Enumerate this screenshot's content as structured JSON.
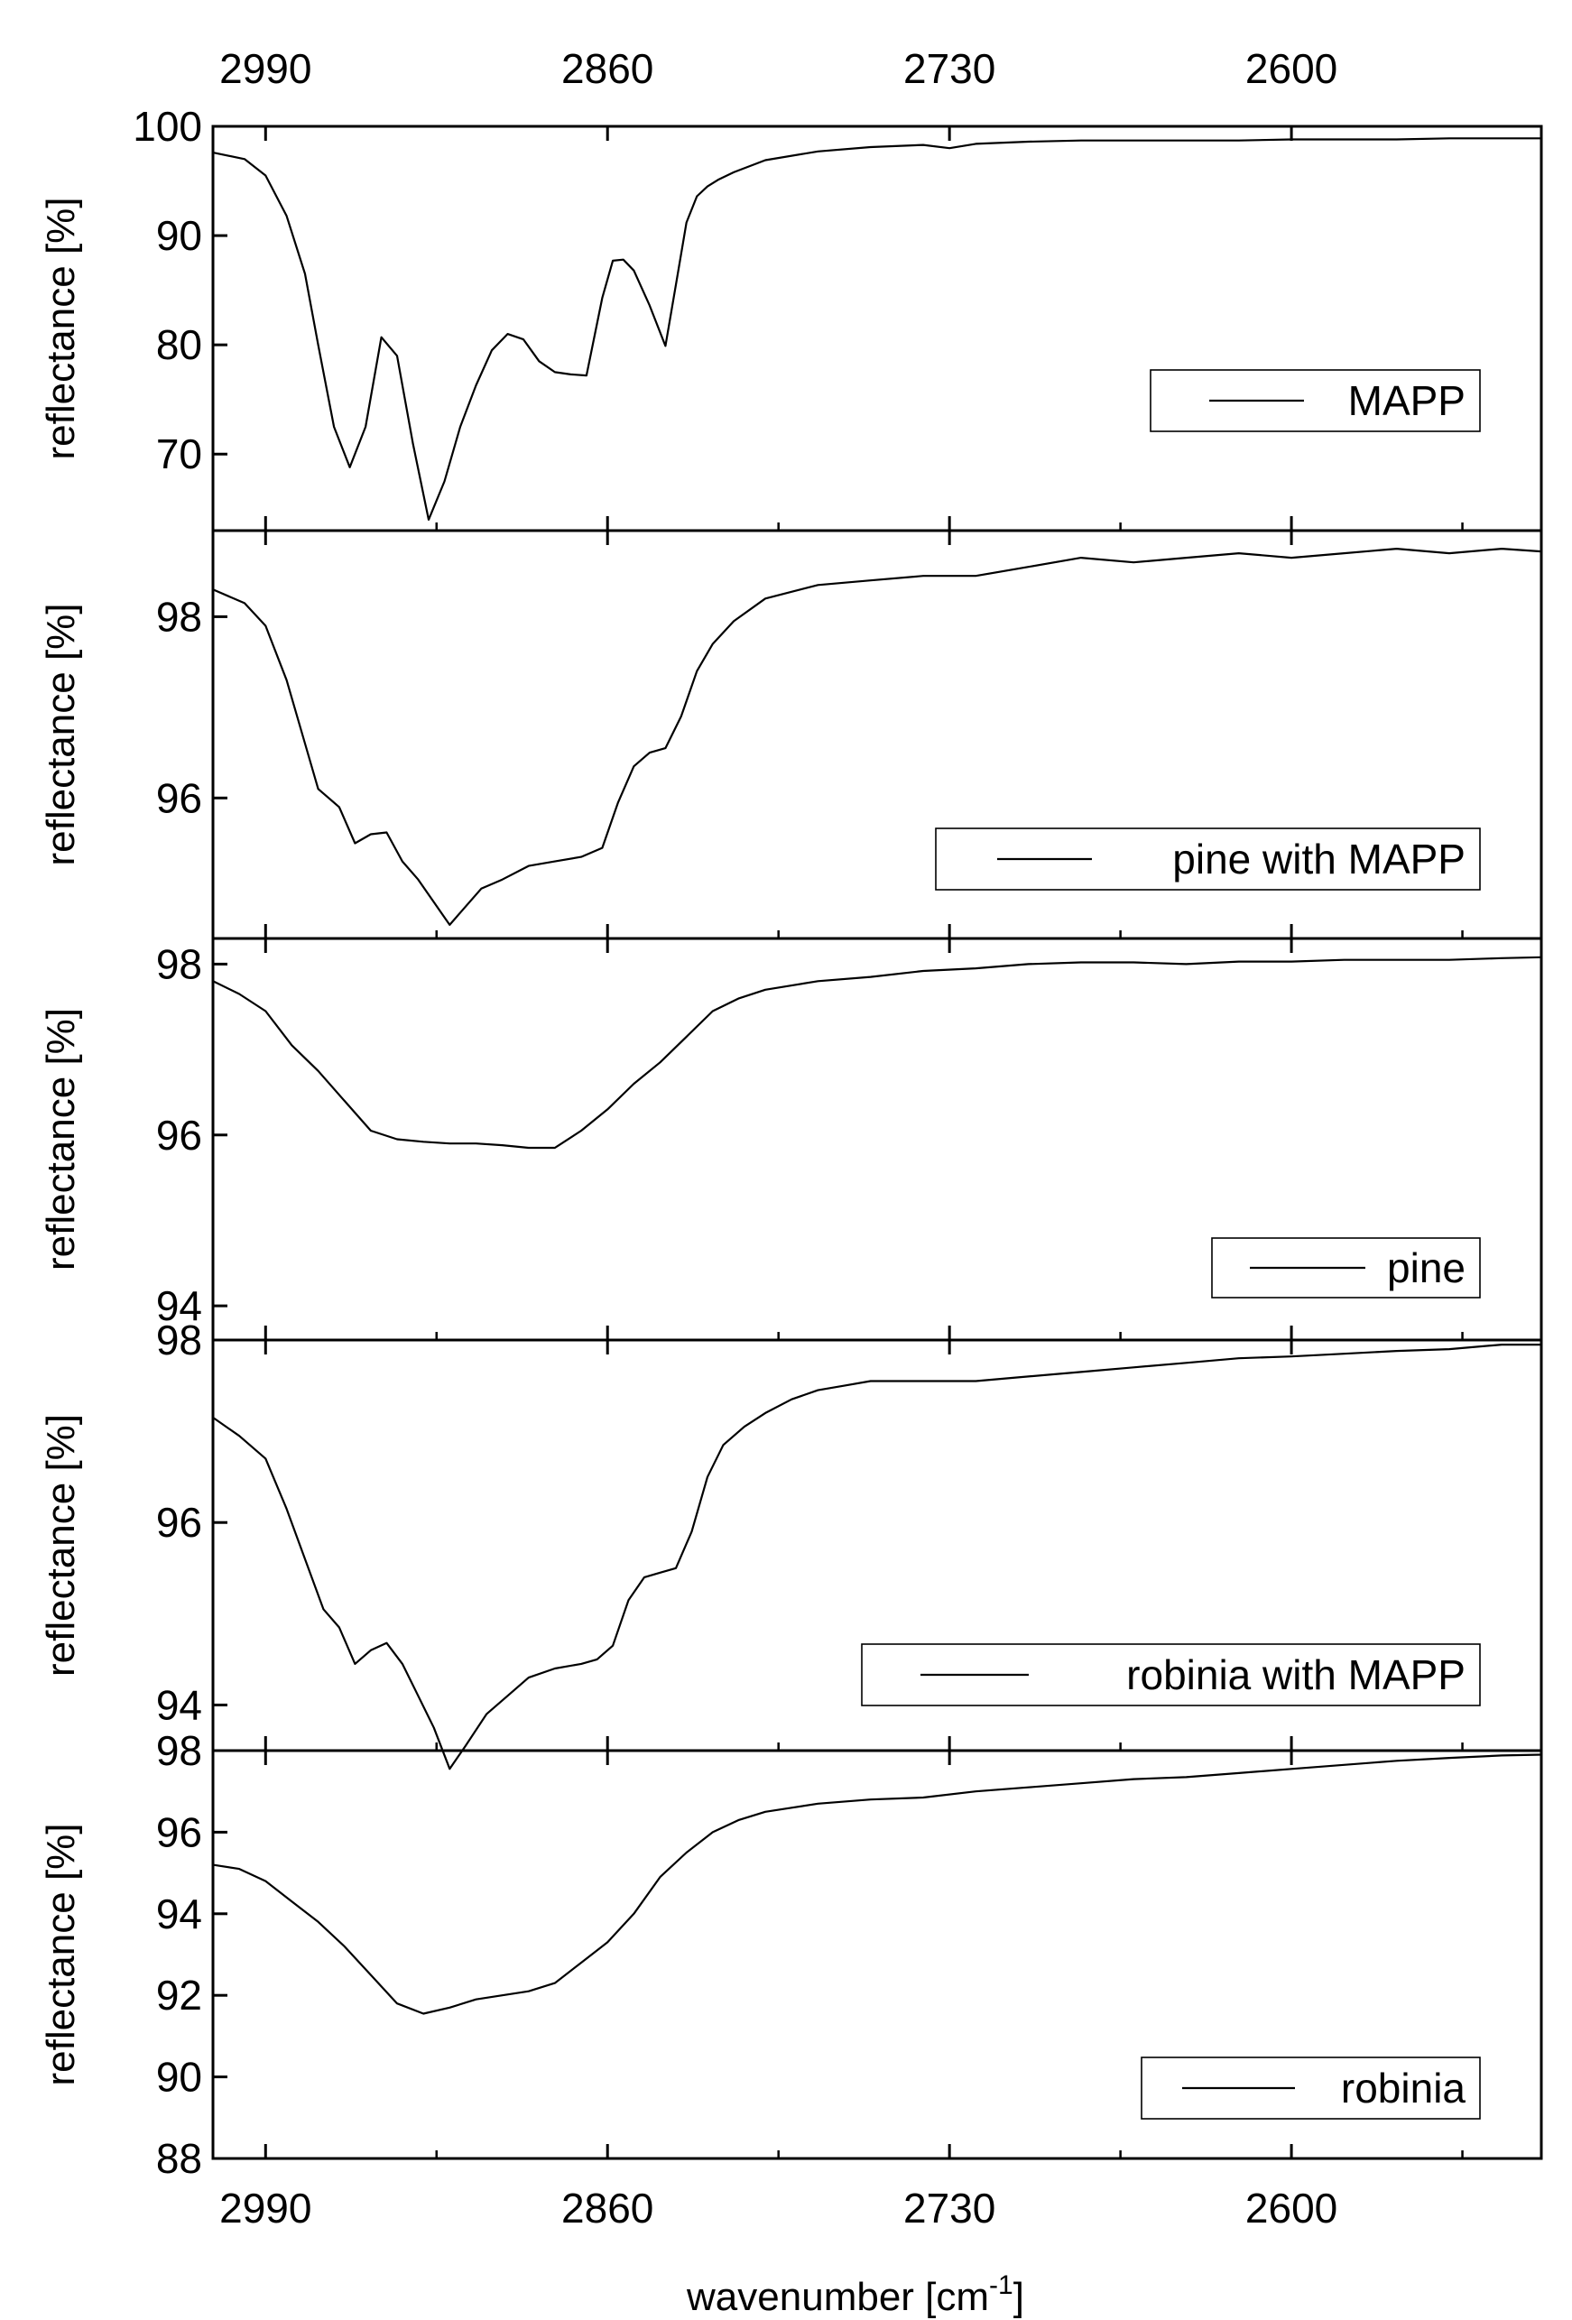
{
  "chart_data": {
    "type": "line",
    "figure": "stacked FTIR reflectance spectra",
    "xlabel_text": "wavenumber [cm",
    "xlabel_sup": "-1",
    "xlabel_close": "]",
    "xlim": [
      3010,
      2505
    ],
    "xticks": [
      2990,
      2860,
      2730,
      2600
    ],
    "xtick_labels": [
      "2990",
      "2860",
      "2730",
      "2600"
    ],
    "panels": [
      {
        "name": "MAPP",
        "legend": "MAPP",
        "ylabel": "reflectance [%]",
        "ylim": [
          63,
          100
        ],
        "yticks": [
          70,
          80,
          90,
          100
        ],
        "ytick_labels": [
          "70",
          "80",
          "90",
          "100"
        ],
        "x": [
          3010,
          2998,
          2990,
          2982,
          2975,
          2970,
          2964,
          2958,
          2952,
          2946,
          2940,
          2934,
          2928,
          2922,
          2916,
          2910,
          2904,
          2898,
          2892,
          2886,
          2880,
          2874,
          2868,
          2862,
          2858,
          2854,
          2850,
          2844,
          2838,
          2834,
          2830,
          2826,
          2822,
          2818,
          2812,
          2800,
          2780,
          2760,
          2740,
          2730,
          2720,
          2700,
          2680,
          2650,
          2620,
          2600,
          2580,
          2560,
          2540,
          2505
        ],
        "y": [
          97.6,
          97,
          95.5,
          91.8,
          86.5,
          80,
          72.5,
          68.8,
          72.5,
          80.7,
          79,
          71,
          64,
          67.5,
          72.5,
          76.3,
          79.5,
          81,
          80.5,
          78.5,
          77.5,
          77.3,
          77.2,
          84.3,
          87.7,
          87.8,
          86.8,
          83.6,
          79.9,
          85.5,
          91.2,
          93.6,
          94.5,
          95.1,
          95.8,
          96.9,
          97.7,
          98.1,
          98.3,
          98,
          98.4,
          98.6,
          98.7,
          98.7,
          98.7,
          98.8,
          98.8,
          98.8,
          98.9,
          98.9
        ]
      },
      {
        "name": "pine with MAPP",
        "legend": "pine with MAPP",
        "ylabel": "reflectance [%]",
        "ylim": [
          94.45,
          98.95
        ],
        "yticks": [
          96,
          98
        ],
        "ytick_labels": [
          "96",
          "98"
        ],
        "x": [
          3010,
          2998,
          2990,
          2982,
          2975,
          2970,
          2962,
          2956,
          2950,
          2944,
          2938,
          2932,
          2926,
          2920,
          2914,
          2908,
          2900,
          2890,
          2880,
          2870,
          2862,
          2856,
          2850,
          2844,
          2838,
          2832,
          2826,
          2820,
          2812,
          2800,
          2780,
          2760,
          2740,
          2720,
          2700,
          2680,
          2660,
          2640,
          2620,
          2600,
          2580,
          2560,
          2540,
          2520,
          2505
        ],
        "y": [
          98.3,
          98.15,
          97.9,
          97.3,
          96.6,
          96.1,
          95.9,
          95.5,
          95.6,
          95.62,
          95.3,
          95.1,
          94.85,
          94.6,
          94.8,
          95,
          95.1,
          95.25,
          95.3,
          95.35,
          95.45,
          95.95,
          96.35,
          96.5,
          96.55,
          96.9,
          97.4,
          97.7,
          97.95,
          98.2,
          98.35,
          98.4,
          98.45,
          98.45,
          98.55,
          98.65,
          98.6,
          98.65,
          98.7,
          98.65,
          98.7,
          98.75,
          98.7,
          98.75,
          98.72
        ]
      },
      {
        "name": "pine",
        "legend": "pine",
        "ylabel": "reflectance [%]",
        "ylim": [
          93.6,
          98.3
        ],
        "yticks": [
          94,
          96,
          98
        ],
        "ytick_labels": [
          "94",
          "96",
          "98"
        ],
        "x": [
          3010,
          3000,
          2990,
          2980,
          2970,
          2960,
          2950,
          2940,
          2930,
          2920,
          2910,
          2900,
          2890,
          2880,
          2870,
          2860,
          2850,
          2840,
          2830,
          2820,
          2810,
          2800,
          2790,
          2780,
          2760,
          2740,
          2720,
          2700,
          2680,
          2660,
          2640,
          2620,
          2600,
          2580,
          2560,
          2540,
          2520,
          2505
        ],
        "y": [
          97.8,
          97.65,
          97.45,
          97.05,
          96.75,
          96.4,
          96.05,
          95.95,
          95.92,
          95.9,
          95.9,
          95.88,
          95.85,
          95.85,
          96.05,
          96.3,
          96.6,
          96.85,
          97.15,
          97.45,
          97.6,
          97.7,
          97.75,
          97.8,
          97.85,
          97.92,
          97.95,
          98.0,
          98.02,
          98.02,
          98.0,
          98.03,
          98.03,
          98.05,
          98.05,
          98.05,
          98.07,
          98.08
        ]
      },
      {
        "name": "robinia with MAPP",
        "legend": "robinia with MAPP",
        "ylabel": "reflectance [%]",
        "ylim": [
          93.5,
          98.0
        ],
        "yticks": [
          94,
          96,
          98
        ],
        "ytick_labels": [
          "94",
          "96",
          "98"
        ],
        "x": [
          3010,
          3000,
          2990,
          2982,
          2975,
          2968,
          2962,
          2956,
          2950,
          2944,
          2938,
          2932,
          2926,
          2920,
          2914,
          2906,
          2898,
          2890,
          2880,
          2870,
          2864,
          2858,
          2852,
          2846,
          2840,
          2834,
          2828,
          2822,
          2816,
          2808,
          2800,
          2790,
          2780,
          2770,
          2760,
          2740,
          2720,
          2700,
          2680,
          2660,
          2640,
          2620,
          2600,
          2580,
          2560,
          2540,
          2520,
          2505
        ],
        "y": [
          97.15,
          96.95,
          96.7,
          96.15,
          95.6,
          95.05,
          94.85,
          94.45,
          94.6,
          94.68,
          94.45,
          94.1,
          93.75,
          93.3,
          93.55,
          93.9,
          94.1,
          94.3,
          94.4,
          94.45,
          94.5,
          94.65,
          95.15,
          95.4,
          95.45,
          95.5,
          95.9,
          96.5,
          96.85,
          97.05,
          97.2,
          97.35,
          97.45,
          97.5,
          97.55,
          97.55,
          97.55,
          97.6,
          97.65,
          97.7,
          97.75,
          97.8,
          97.82,
          97.85,
          97.88,
          97.9,
          97.95,
          97.95
        ]
      },
      {
        "name": "robinia",
        "legend": "robinia",
        "ylabel": "reflectance [%]",
        "ylim": [
          88.0,
          98.0
        ],
        "yticks": [
          88,
          90,
          92,
          94,
          96,
          98
        ],
        "ytick_labels": [
          "88",
          "90",
          "92",
          "94",
          "96",
          "98"
        ],
        "x": [
          3010,
          3000,
          2990,
          2980,
          2970,
          2960,
          2950,
          2940,
          2930,
          2920,
          2910,
          2900,
          2890,
          2880,
          2870,
          2860,
          2850,
          2840,
          2830,
          2820,
          2810,
          2800,
          2790,
          2780,
          2760,
          2740,
          2720,
          2700,
          2680,
          2660,
          2640,
          2620,
          2600,
          2580,
          2560,
          2540,
          2520,
          2505
        ],
        "y": [
          95.2,
          95.1,
          94.8,
          94.3,
          93.8,
          93.2,
          92.5,
          91.8,
          91.55,
          91.7,
          91.9,
          92.0,
          92.1,
          92.3,
          92.8,
          93.3,
          94.0,
          94.9,
          95.5,
          96.0,
          96.3,
          96.5,
          96.6,
          96.7,
          96.8,
          96.85,
          97.0,
          97.1,
          97.2,
          97.3,
          97.35,
          97.45,
          97.55,
          97.65,
          97.75,
          97.82,
          97.88,
          97.9
        ]
      }
    ]
  }
}
